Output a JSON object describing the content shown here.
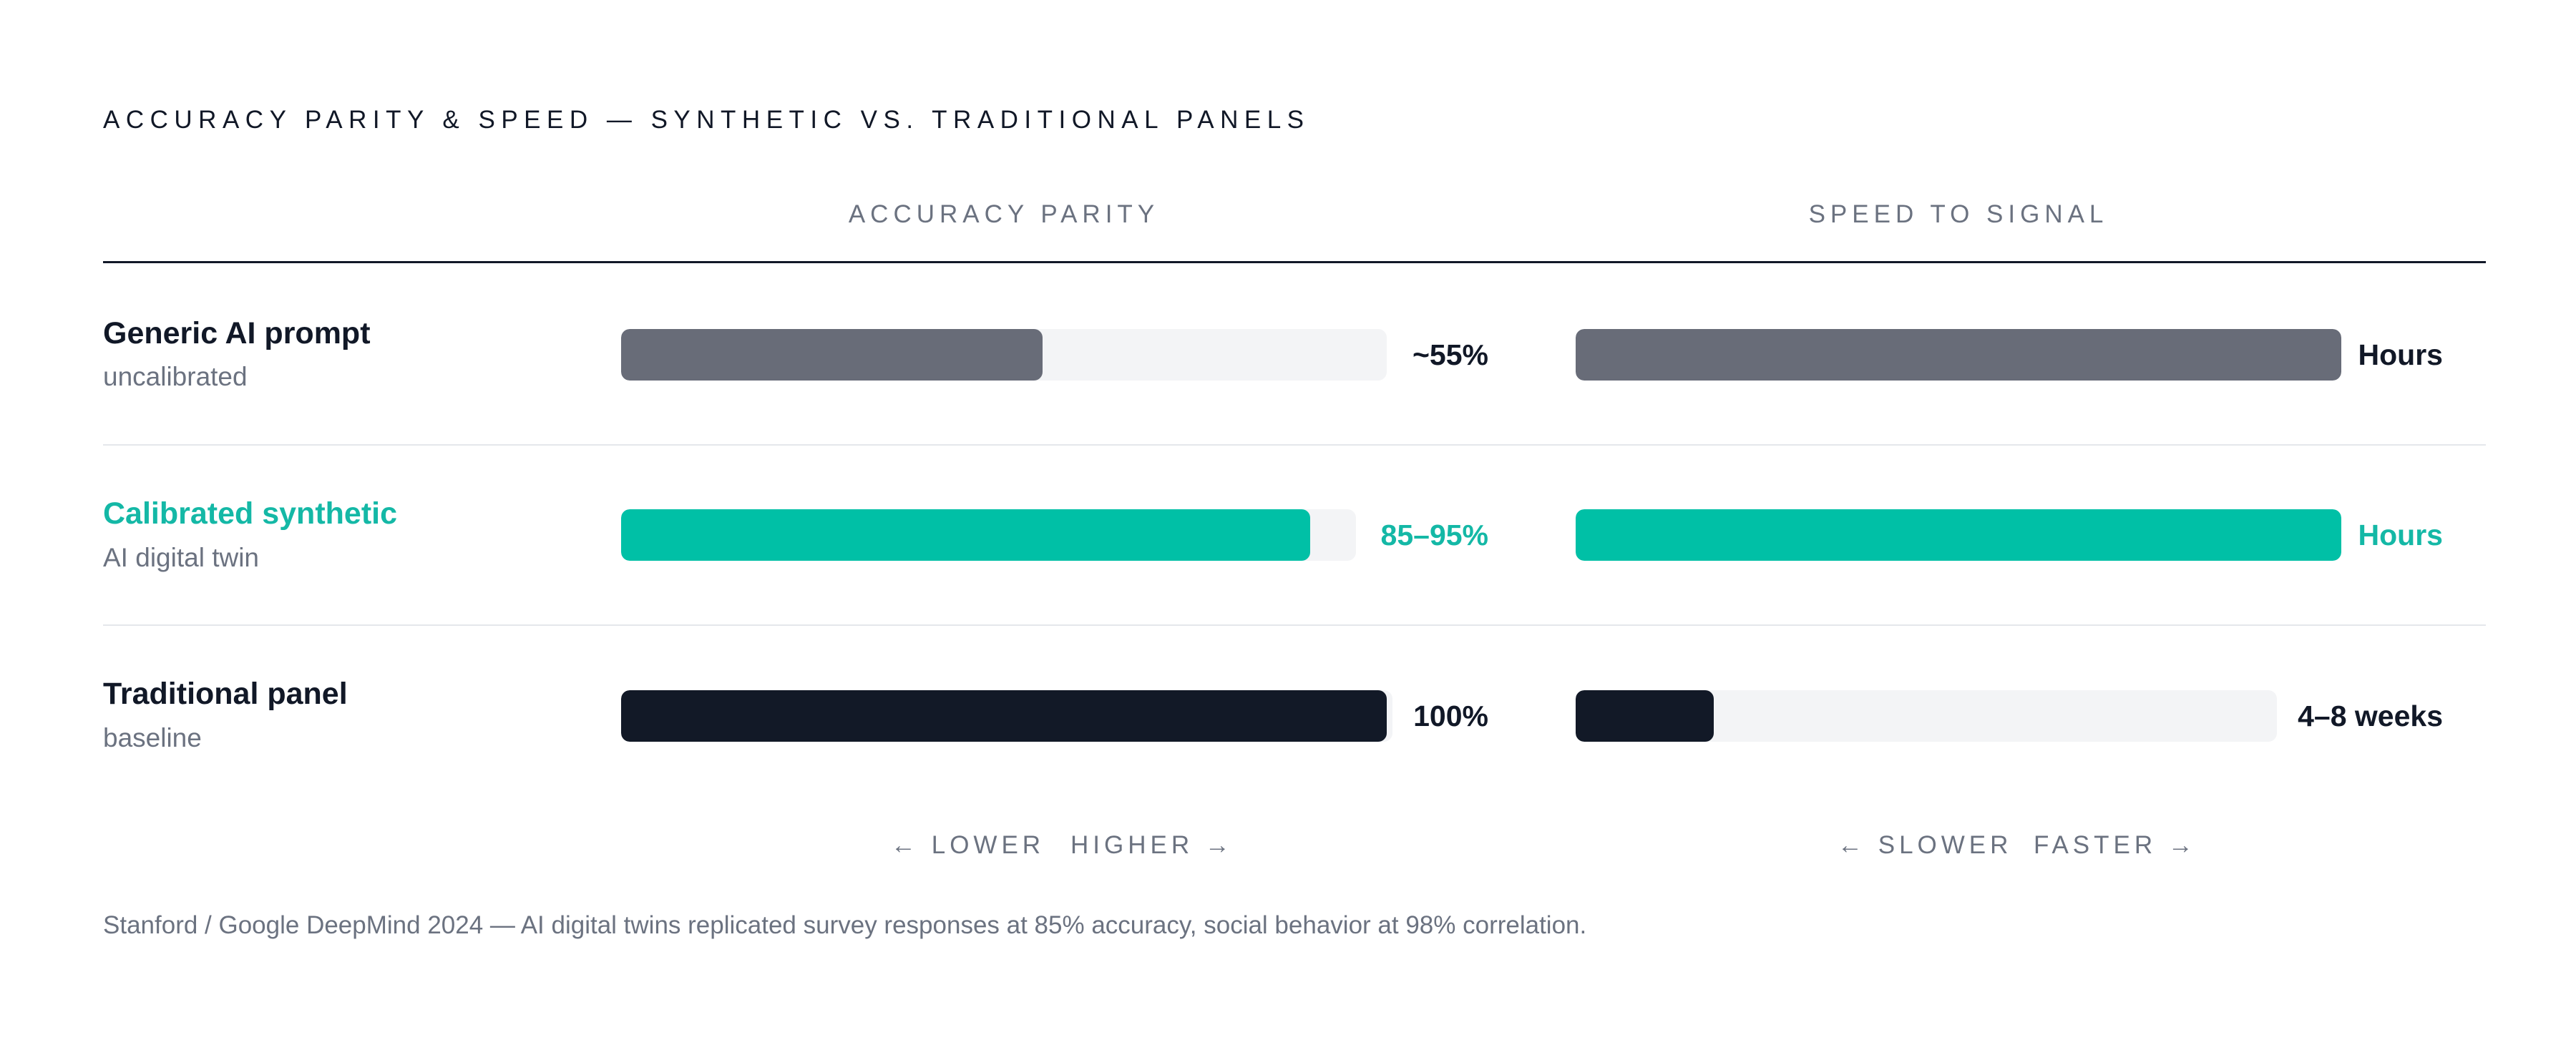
{
  "chart_data": {
    "type": "bar",
    "title": "ACCURACY PARITY & SPEED — SYNTHETIC VS. TRADITIONAL PANELS",
    "panels": [
      {
        "label": "ACCURACY PARITY",
        "scale_low": "← LOWER",
        "scale_high": "HIGHER →",
        "values": [
          0.55,
          0.9,
          1.0
        ],
        "value_labels": [
          "~55%",
          "85–95%",
          "100%"
        ]
      },
      {
        "label": "SPEED TO SIGNAL",
        "scale_low": "← SLOWER",
        "scale_high": "FASTER →",
        "values": [
          1.0,
          1.0,
          0.18
        ],
        "value_labels": [
          "Hours",
          "Hours",
          "4–8 weeks"
        ]
      }
    ],
    "rows": [
      {
        "name": "Generic AI prompt",
        "sub": "uncalibrated",
        "color": "#686c78",
        "name_color": "#111827",
        "label_color": "#111827"
      },
      {
        "name": "Calibrated synthetic",
        "sub": "AI digital twin",
        "color": "#00c0a6",
        "name_color": "#14b8a6",
        "label_color": "#14b8a6"
      },
      {
        "name": "Traditional panel",
        "sub": "baseline",
        "color": "#121927",
        "name_color": "#111827",
        "label_color": "#111827"
      }
    ],
    "track_color": "#f3f4f6",
    "footnote": "Stanford / Google DeepMind 2024 — AI digital twins replicated survey responses at 85% accuracy, social behavior at 98% correlation."
  }
}
